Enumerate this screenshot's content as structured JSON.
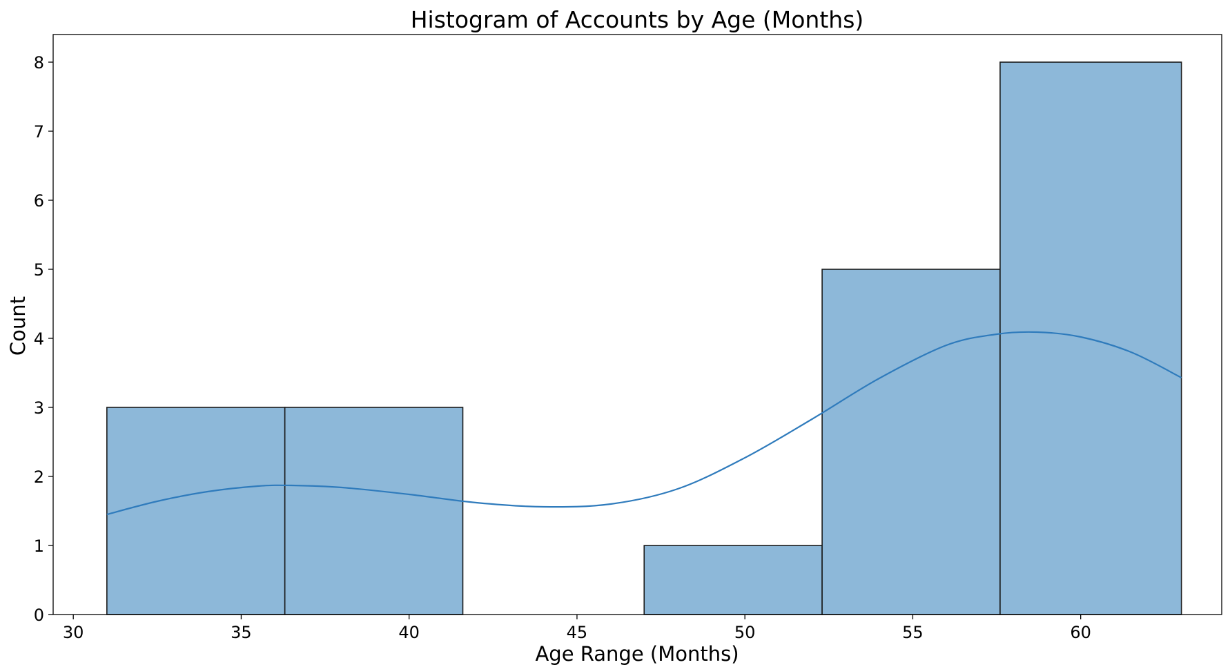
{
  "chart_data": {
    "type": "bar",
    "title": "Histogram of Accounts by Age (Months)",
    "xlabel": "Age Range (Months)",
    "ylabel": "Count",
    "xlim": [
      29.4,
      64.2
    ],
    "ylim": [
      0,
      8.4
    ],
    "xticks": [
      30,
      35,
      40,
      45,
      50,
      55,
      60
    ],
    "yticks": [
      0,
      1,
      2,
      3,
      4,
      5,
      6,
      7,
      8
    ],
    "grid": false,
    "bins": [
      {
        "start": 31.0,
        "end": 36.3,
        "count": 3
      },
      {
        "start": 36.3,
        "end": 41.6,
        "count": 3
      },
      {
        "start": 41.6,
        "end": 47.0,
        "count": 0
      },
      {
        "start": 47.0,
        "end": 52.3,
        "count": 1
      },
      {
        "start": 52.3,
        "end": 57.6,
        "count": 5
      },
      {
        "start": 57.6,
        "end": 63.0,
        "count": 8
      }
    ],
    "kde": {
      "x": [
        31.0,
        32.5,
        34.0,
        35.5,
        36.5,
        38.0,
        40.0,
        42.0,
        44.0,
        46.0,
        48.0,
        50.0,
        52.0,
        54.0,
        56.0,
        57.5,
        58.7,
        60.0,
        61.5,
        63.0
      ],
      "y": [
        1.45,
        1.64,
        1.78,
        1.86,
        1.87,
        1.84,
        1.74,
        1.62,
        1.56,
        1.6,
        1.82,
        2.27,
        2.83,
        3.42,
        3.9,
        4.06,
        4.09,
        4.02,
        3.8,
        3.43
      ]
    },
    "colors": {
      "bar_fill": "#8db8d9",
      "bar_edge": "#1a1a1a",
      "kde_line": "#2f7bbc"
    }
  }
}
